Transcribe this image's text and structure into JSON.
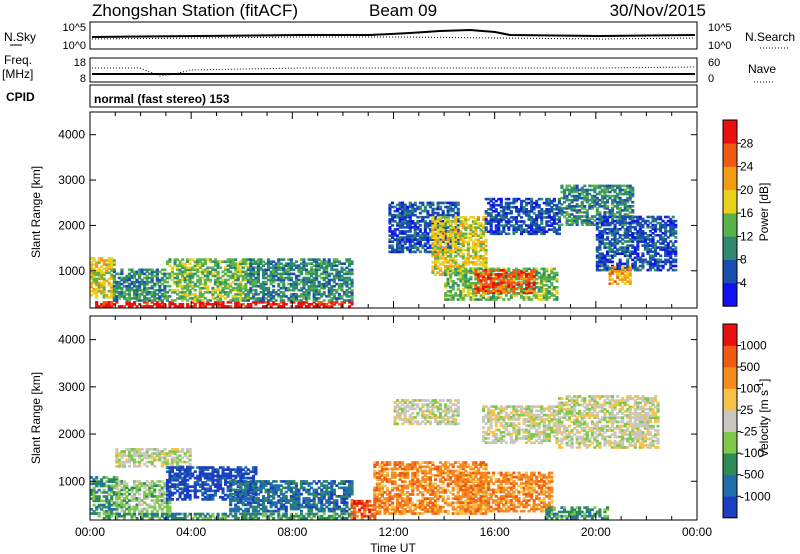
{
  "header": {
    "station": "Zhongshan Station (fitACF)",
    "beam": "Beam 09",
    "date": "30/Nov/2015"
  },
  "top_panels": {
    "nsky": {
      "label": "N.Sky",
      "tick_hi": "10^5",
      "tick_lo": "10^0",
      "right_label": "N.Search",
      "right_tick_hi": "10^5",
      "right_tick_lo": "10^0"
    },
    "freq": {
      "label_1": "Freq.",
      "label_2": "[MHz]",
      "tick_hi": "18",
      "tick_lo": "8",
      "right_label": "Nave",
      "right_tick_hi": "60",
      "right_tick_lo": "0"
    },
    "cpid": {
      "label": "CPID",
      "text": "normal (fast stereo) 153"
    }
  },
  "chart_data": [
    {
      "type": "heatmap",
      "quantity": "Power",
      "ylabel": "Slant Range [km]",
      "ylim": [
        180,
        4500
      ],
      "yticks": [
        1000,
        2000,
        3000,
        4000
      ],
      "xlim": [
        0,
        24
      ],
      "colorbar": {
        "label": "Power [dB]",
        "ticks": [
          "4",
          "8",
          "12",
          "16",
          "20",
          "24",
          "28"
        ],
        "colors": [
          "#1010f0",
          "#1a4fb0",
          "#2f8a6f",
          "#5ab24a",
          "#e8d21c",
          "#f39c12",
          "#f05a14",
          "#e81010"
        ]
      },
      "regions": [
        {
          "x0": 0.0,
          "x1": 0.9,
          "y0": 400,
          "y1": 1300,
          "level": 4
        },
        {
          "x0": 0.2,
          "x1": 10.3,
          "y0": 200,
          "y1": 330,
          "level": 7
        },
        {
          "x0": 0.9,
          "x1": 3.0,
          "y0": 330,
          "y1": 1050,
          "level": 2
        },
        {
          "x0": 3.0,
          "x1": 6.2,
          "y0": 330,
          "y1": 1250,
          "level": 3
        },
        {
          "x0": 6.2,
          "x1": 10.3,
          "y0": 330,
          "y1": 1250,
          "level": 2
        },
        {
          "x0": 11.8,
          "x1": 14.5,
          "y0": 1400,
          "y1": 2500,
          "level": 1
        },
        {
          "x0": 13.5,
          "x1": 15.6,
          "y0": 900,
          "y1": 2200,
          "level": 4
        },
        {
          "x0": 14.0,
          "x1": 18.5,
          "y0": 350,
          "y1": 1050,
          "level": 3
        },
        {
          "x0": 15.2,
          "x1": 17.6,
          "y0": 500,
          "y1": 1000,
          "level": 6
        },
        {
          "x0": 15.6,
          "x1": 18.6,
          "y0": 1800,
          "y1": 2600,
          "level": 1
        },
        {
          "x0": 18.6,
          "x1": 21.5,
          "y0": 2000,
          "y1": 2900,
          "level": 2
        },
        {
          "x0": 20.0,
          "x1": 23.2,
          "y0": 1000,
          "y1": 2200,
          "level": 1
        },
        {
          "x0": 20.5,
          "x1": 21.4,
          "y0": 700,
          "y1": 1100,
          "level": 5
        }
      ]
    },
    {
      "type": "heatmap",
      "quantity": "Velocity",
      "ylabel": "Slant Range [km]",
      "ylim": [
        180,
        4500
      ],
      "yticks": [
        1000,
        2000,
        3000,
        4000
      ],
      "xlim": [
        0,
        24
      ],
      "xticks": [
        "00:00",
        "04:00",
        "08:00",
        "12:00",
        "16:00",
        "20:00",
        "00:00"
      ],
      "xlabel": "Time UT",
      "colorbar": {
        "label": "Velocity [m s^-1]",
        "ticks": [
          "1000",
          "500",
          "100",
          "25",
          "-25",
          "-100",
          "-500",
          "-1000"
        ],
        "colors": [
          "#1b3fc0",
          "#1f6fa8",
          "#2e8b57",
          "#7fc94a",
          "#c8c8c0",
          "#f7c24a",
          "#f58a1f",
          "#f05a14",
          "#e81010"
        ]
      },
      "regions": [
        {
          "x0": 0.0,
          "x1": 1.0,
          "y0": 300,
          "y1": 1100,
          "level": 2
        },
        {
          "x0": 0.3,
          "x1": 10.5,
          "y0": 200,
          "y1": 330,
          "level": 2
        },
        {
          "x0": 1.0,
          "x1": 4.0,
          "y0": 1300,
          "y1": 1700,
          "level": 4
        },
        {
          "x0": 1.0,
          "x1": 3.2,
          "y0": 350,
          "y1": 1000,
          "level": 3
        },
        {
          "x0": 3.0,
          "x1": 6.5,
          "y0": 600,
          "y1": 1300,
          "level": 0
        },
        {
          "x0": 5.5,
          "x1": 10.3,
          "y0": 350,
          "y1": 1000,
          "level": 1
        },
        {
          "x0": 10.3,
          "x1": 11.2,
          "y0": 200,
          "y1": 600,
          "level": 7
        },
        {
          "x0": 11.2,
          "x1": 15.6,
          "y0": 300,
          "y1": 1400,
          "level": 6
        },
        {
          "x0": 12.0,
          "x1": 14.5,
          "y0": 2200,
          "y1": 2700,
          "level": 4
        },
        {
          "x0": 14.5,
          "x1": 18.3,
          "y0": 350,
          "y1": 1200,
          "level": 6
        },
        {
          "x0": 15.5,
          "x1": 18.5,
          "y0": 1800,
          "y1": 2600,
          "level": 4
        },
        {
          "x0": 18.5,
          "x1": 22.5,
          "y0": 1700,
          "y1": 2800,
          "level": 4
        },
        {
          "x0": 18.0,
          "x1": 20.5,
          "y0": 200,
          "y1": 450,
          "level": 2
        }
      ]
    }
  ]
}
